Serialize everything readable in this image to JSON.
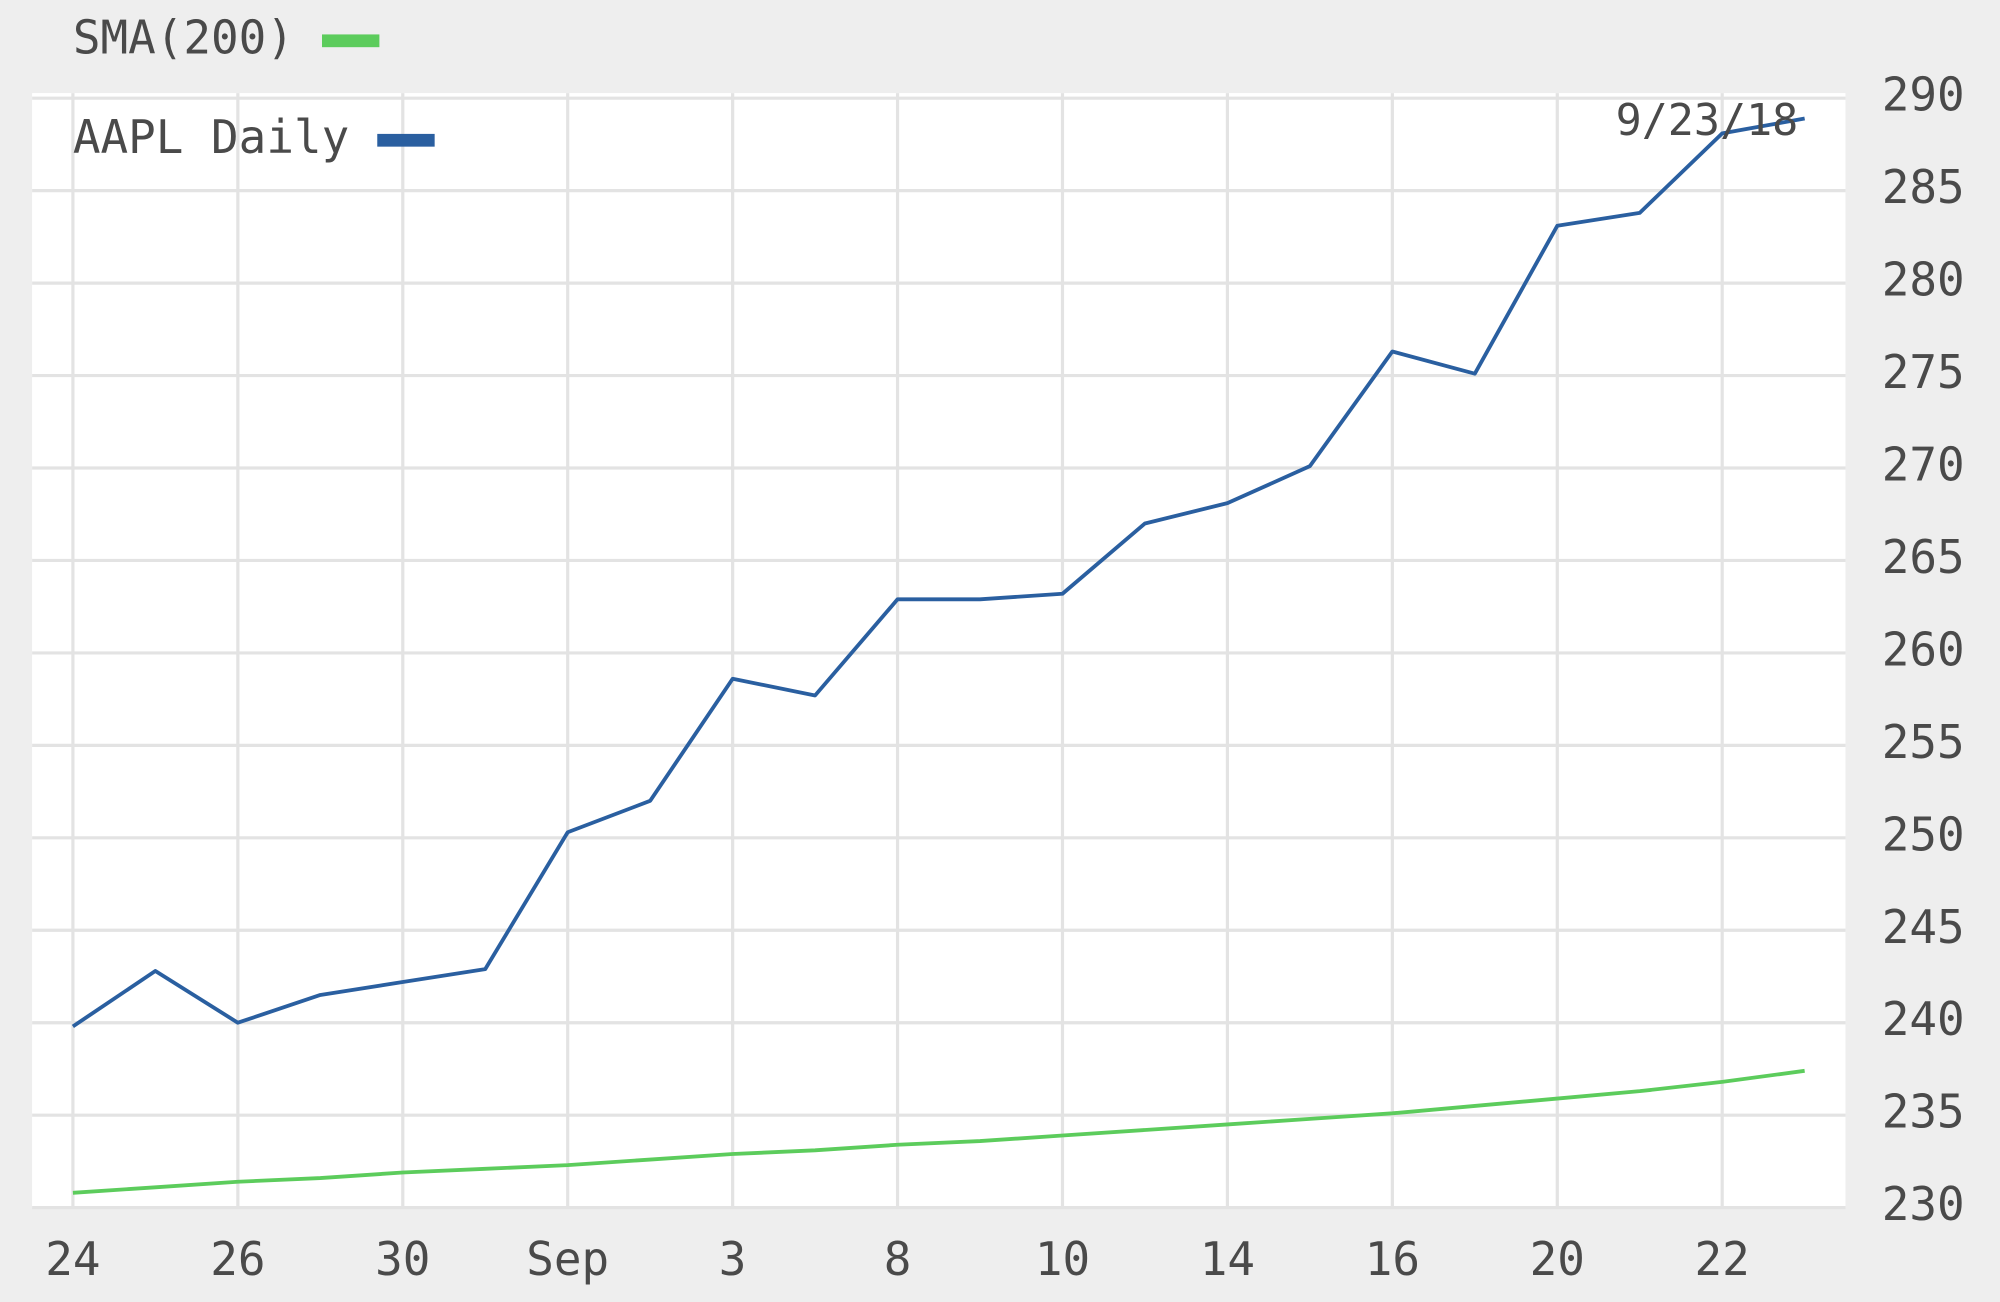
{
  "chart_data": {
    "type": "line",
    "annotation": "9/23/18",
    "categories": [
      "24",
      null,
      "26",
      null,
      "30",
      null,
      "Sep",
      null,
      "3",
      null,
      "8",
      null,
      "10",
      null,
      "14",
      null,
      "16",
      null,
      "20",
      null,
      "22",
      null
    ],
    "series": [
      {
        "name": "SMA(200)",
        "color": "#5ccc5c",
        "values": [
          230.8,
          231.1,
          231.4,
          231.6,
          231.9,
          232.1,
          232.3,
          232.6,
          232.9,
          233.1,
          233.4,
          233.6,
          233.9,
          234.2,
          234.5,
          234.8,
          235.1,
          235.5,
          235.9,
          236.3,
          236.8,
          237.4
        ]
      },
      {
        "name": "AAPL Daily",
        "color": "#2a5fa0",
        "values": [
          239.8,
          242.8,
          240.0,
          241.5,
          242.2,
          242.9,
          250.3,
          252.0,
          258.6,
          257.7,
          262.9,
          262.9,
          263.2,
          267.0,
          268.1,
          270.1,
          276.3,
          275.1,
          283.1,
          283.8,
          288.1,
          288.9
        ]
      }
    ],
    "ylim": [
      230,
      290
    ],
    "yticks": [
      230,
      235,
      240,
      245,
      250,
      255,
      260,
      265,
      270,
      275,
      280,
      285,
      290
    ],
    "grid": true
  }
}
